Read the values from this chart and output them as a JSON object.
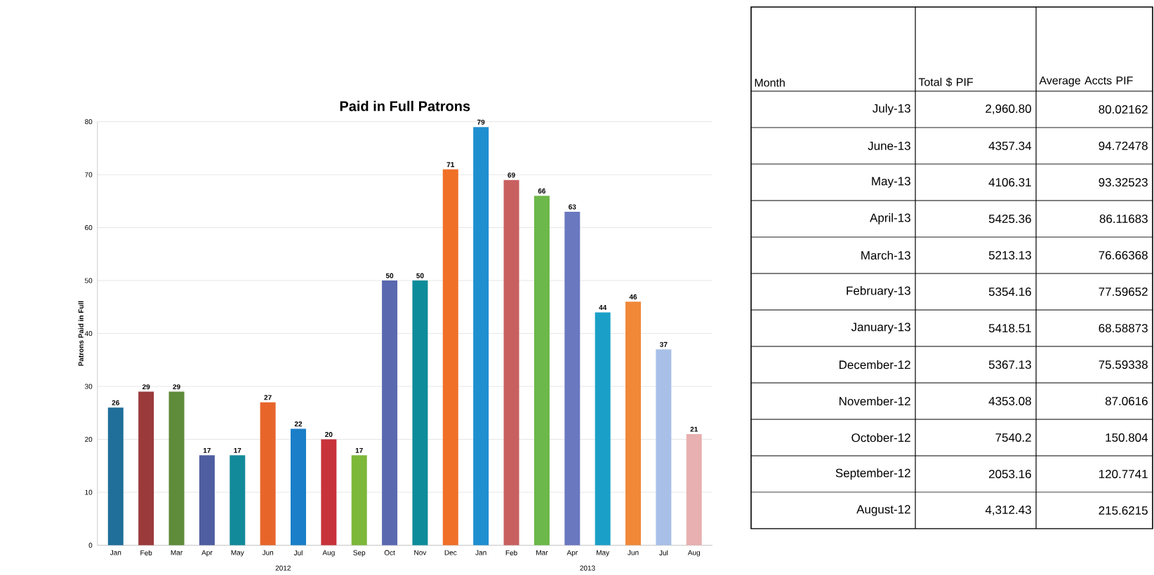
{
  "chart_data": [
    {
      "type": "bar",
      "title": "Paid in Full Patrons",
      "ylabel": "Patrons Paid in Full",
      "categories": [
        "Jan",
        "Feb",
        "Mar",
        "Apr",
        "May",
        "Jun",
        "Jul",
        "Aug",
        "Sep",
        "Oct",
        "Nov",
        "Dec",
        "Jan",
        "Feb",
        "Mar",
        "Apr",
        "May",
        "Jun",
        "Jul",
        "Aug"
      ],
      "values": [
        26,
        29,
        29,
        17,
        17,
        27,
        22,
        20,
        17,
        50,
        50,
        71,
        79,
        69,
        66,
        63,
        44,
        46,
        37,
        21
      ],
      "colors": [
        "#1f6f9a",
        "#9b3a3a",
        "#5e8c3a",
        "#4e5ea0",
        "#138a9a",
        "#e8652a",
        "#1a7fc8",
        "#c8323a",
        "#7cb83a",
        "#5a68b0",
        "#0e8c9a",
        "#f07028",
        "#1f8fd0",
        "#c86060",
        "#6cb84a",
        "#6a78c0",
        "#1aa0c8",
        "#f08838",
        "#a8c0e8",
        "#e8b0b0"
      ],
      "ylim": [
        0,
        80
      ],
      "yticks": [
        0,
        10,
        20,
        30,
        40,
        50,
        60,
        70,
        80
      ],
      "grid": "y",
      "data_labels": true,
      "annotations": [
        "2012",
        "2013"
      ]
    },
    {
      "type": "other",
      "annotations": [
        "Month",
        "Total $ PIF",
        "Average Accts PIF",
        "July-13",
        "2,960.80",
        "80.02162",
        "June-13",
        "4357.34",
        "94.72478",
        "May-13",
        "4106.31",
        "93.32523",
        "April-13",
        "5425.36",
        "86.11683",
        "March-13",
        "5213.13",
        "76.66368",
        "February-13",
        "5354.16",
        "77.59652",
        "January-13",
        "5418.51",
        "68.58873",
        "December-12",
        "5367.13",
        "75.59338",
        "November-12",
        "4353.08",
        "87.0616",
        "October-12",
        "7540.2",
        "150.804",
        "September-12",
        "2053.16",
        "120.7741",
        "August-12",
        "4,312.43",
        "215.6215"
      ]
    }
  ]
}
